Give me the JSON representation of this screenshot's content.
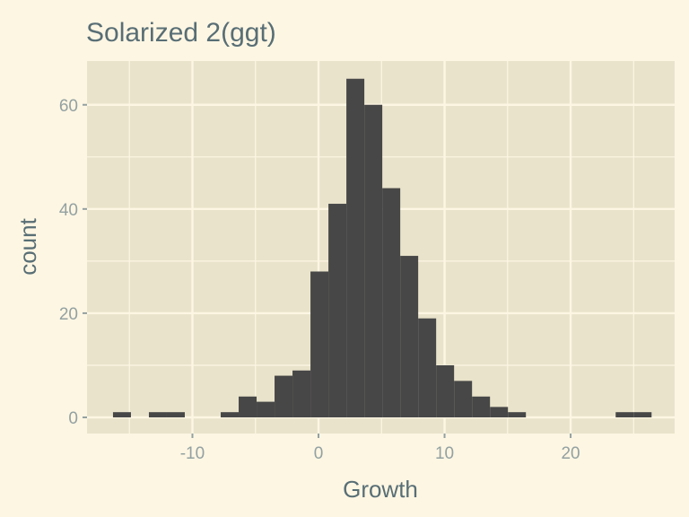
{
  "chart_data": {
    "type": "histogram",
    "title": "Solarized  2(ggt)",
    "xlabel": "Growth",
    "ylabel": "count",
    "bin_width": 1.424,
    "bin_start": -16.3,
    "counts": [
      1,
      0,
      1,
      1,
      0,
      0,
      1,
      4,
      3,
      8,
      9,
      28,
      41,
      65,
      60,
      44,
      31,
      19,
      10,
      7,
      4,
      2,
      1,
      0,
      0,
      0,
      0,
      0,
      1,
      1
    ],
    "xlim": [
      -18.36,
      28.25
    ],
    "ylim": [
      -3.1,
      68.4
    ],
    "x_ticks": [
      -10,
      0,
      10,
      20
    ],
    "x_tick_labels": [
      "-10",
      "0",
      "10",
      "20"
    ],
    "y_ticks": [
      0,
      20,
      40,
      60
    ],
    "y_tick_labels": [
      "0",
      "20",
      "40",
      "60"
    ],
    "grid": true,
    "colors": {
      "background": "#FDF6E3",
      "panel": "#E9E3CB",
      "bar": "#474747",
      "grid": "#FDF6E3",
      "title": "#586E75",
      "tick": "#93A1A1"
    }
  }
}
